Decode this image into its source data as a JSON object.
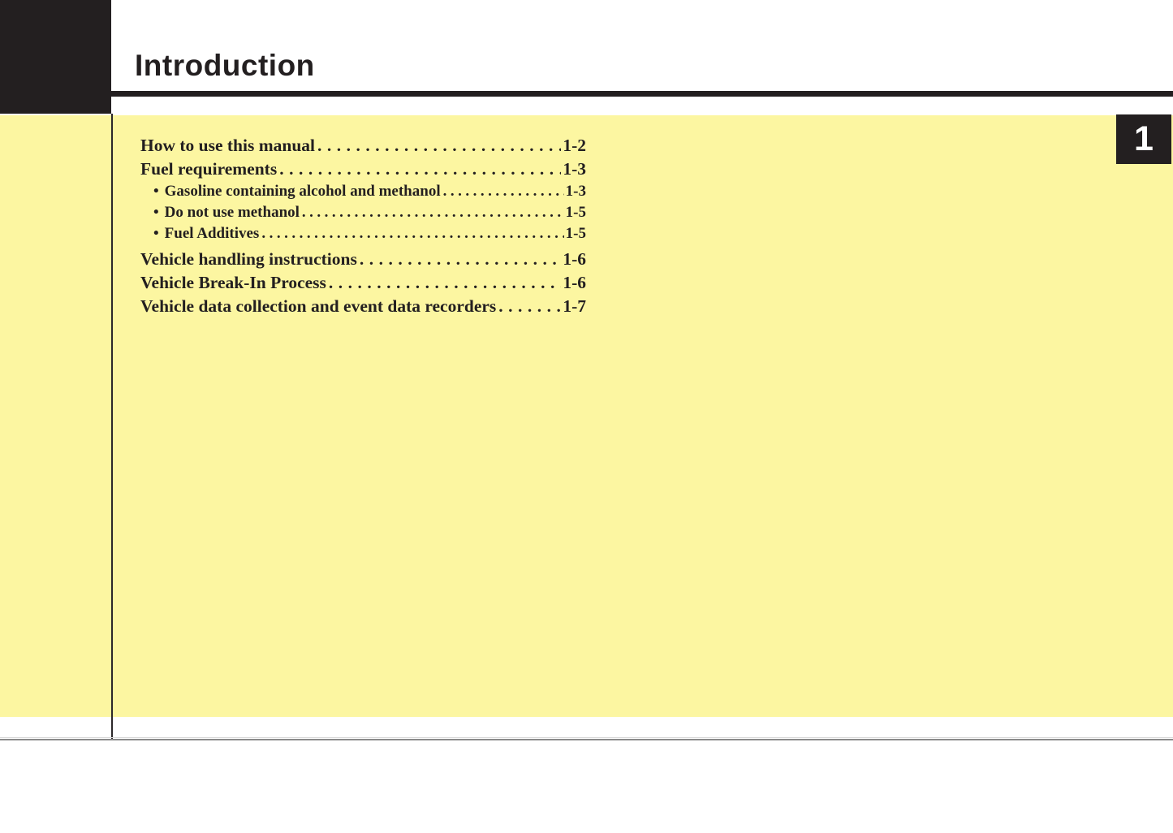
{
  "header": {
    "title": "Introduction",
    "chapter_number": "1"
  },
  "toc": {
    "bullet_char": "•",
    "entries": [
      {
        "label": "How to use this manual",
        "page": "1-2",
        "level": 0
      },
      {
        "label": "Fuel requirements",
        "page": "1-3",
        "level": 0
      },
      {
        "label": "Gasoline containing alcohol and methanol",
        "page": "1-3",
        "level": 1
      },
      {
        "label": "Do not use methanol",
        "page": "1-5",
        "level": 1
      },
      {
        "label": "Fuel Additives",
        "page": "1-5",
        "level": 1
      },
      {
        "label": "Vehicle handling instructions",
        "page": "1-6",
        "level": 0
      },
      {
        "label": "Vehicle Break-In Process",
        "page": "1-6",
        "level": 0
      },
      {
        "label": "Vehicle data collection and event data recorders",
        "page": "1-7",
        "level": 0
      }
    ]
  },
  "colors": {
    "panel_yellow": "#FCF6A1",
    "ink_black": "#231F20",
    "badge_text": "#FFFFFF",
    "footer_rule_gray": "#8A8A8A"
  }
}
